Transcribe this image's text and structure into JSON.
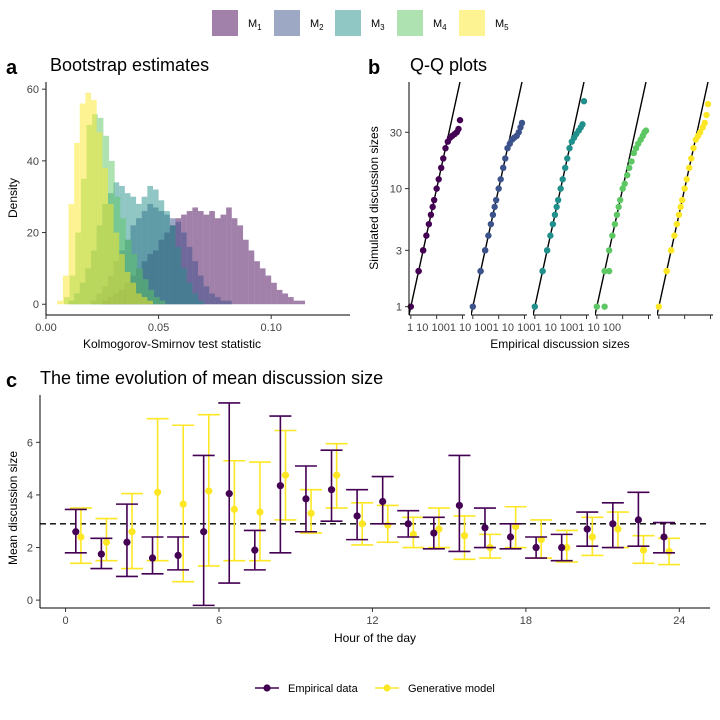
{
  "top_legend": {
    "items": [
      {
        "label": "M",
        "sub": "1",
        "color": "#440154"
      },
      {
        "label": "M",
        "sub": "2",
        "color": "#3b528b"
      },
      {
        "label": "M",
        "sub": "3",
        "color": "#21908c"
      },
      {
        "label": "M",
        "sub": "4",
        "color": "#5dc863"
      },
      {
        "label": "M",
        "sub": "5",
        "color": "#fde725"
      }
    ]
  },
  "bottom_legend": {
    "items": [
      {
        "label": "Empirical data",
        "color": "#440154"
      },
      {
        "label": "Generative model",
        "color": "#fde725"
      }
    ]
  },
  "chart_data": [
    {
      "panel": "a",
      "type": "histogram",
      "title": "Bootstrap estimates",
      "xlabel": "Kolmogorov-Smirnov test statistic",
      "ylabel": "Density",
      "xlim": [
        0.0,
        0.135
      ],
      "ylim": [
        -3,
        62
      ],
      "xticks": [
        0.0,
        0.05,
        0.1
      ],
      "xtick_labels": [
        "0.00",
        "0.05",
        "0.10"
      ],
      "yticks": [
        0,
        20,
        40,
        60
      ],
      "ytick_labels": [
        "0",
        "20",
        "40",
        "60"
      ],
      "bin_width": 0.0025,
      "series": [
        {
          "name": "M1",
          "color": "#440154",
          "bin_start": 0.025,
          "densities": [
            1,
            2,
            3,
            4,
            6,
            8,
            10,
            12,
            14,
            15,
            18,
            20,
            22,
            24,
            25,
            26,
            27,
            26,
            25,
            26,
            24,
            25,
            27,
            24,
            22,
            18,
            15,
            12,
            10,
            8,
            6,
            4,
            3,
            2,
            1,
            1
          ]
        },
        {
          "name": "M2",
          "color": "#3b528b",
          "bin_start": 0.02,
          "densities": [
            1,
            3,
            5,
            8,
            12,
            15,
            18,
            22,
            24,
            26,
            28,
            27,
            26,
            25,
            24,
            23,
            20,
            16,
            12,
            8,
            5,
            3,
            2,
            1,
            1
          ]
        },
        {
          "name": "M3",
          "color": "#21908c",
          "bin_start": 0.01,
          "densities": [
            1,
            3,
            6,
            10,
            15,
            22,
            28,
            31,
            34,
            33,
            31,
            30,
            28,
            30,
            33,
            32,
            29,
            26,
            22,
            16,
            10,
            6,
            3,
            1
          ]
        },
        {
          "name": "M4",
          "color": "#5dc863",
          "bin_start": 0.008,
          "densities": [
            2,
            8,
            20,
            35,
            50,
            53,
            52,
            47,
            40,
            30,
            24,
            18,
            14,
            10,
            7,
            4,
            2,
            1
          ]
        },
        {
          "name": "M5",
          "color": "#fde725",
          "bin_start": 0.005,
          "densities": [
            1,
            8,
            28,
            45,
            56,
            59,
            57,
            48,
            38,
            28,
            20,
            14,
            9,
            6,
            3,
            2,
            1
          ]
        }
      ]
    },
    {
      "panel": "b",
      "type": "scatter",
      "title": "Q-Q plots",
      "xlabel": "Empirical discussion sizes",
      "ylabel": "Simulated discussion sizes",
      "xscale": "log",
      "yscale": "log",
      "ylim": [
        0.85,
        80
      ],
      "xlim_each": [
        0.85,
        125
      ],
      "yticks": [
        1,
        3,
        10,
        30
      ],
      "ytick_labels": [
        "1",
        "3",
        "10",
        "30"
      ],
      "xticks": [
        1,
        10,
        100
      ],
      "xtick_labels": [
        "1",
        "10",
        "100"
      ],
      "xtick_row": "1   10 1001   10 1001   10 1001   10 1001   10 100",
      "reference_line": "y = x",
      "series": [
        {
          "name": "M1",
          "color": "#440154",
          "x": [
            1,
            2,
            2,
            3,
            3,
            4,
            5,
            6,
            7,
            8,
            10,
            12,
            15,
            18,
            22,
            27,
            33,
            40,
            50,
            60,
            70,
            80
          ],
          "y": [
            1,
            2,
            2,
            3,
            3,
            4,
            5,
            6,
            7,
            8,
            10,
            12,
            15,
            18,
            22,
            25,
            27,
            28,
            29,
            30,
            32,
            38
          ]
        },
        {
          "name": "M2",
          "color": "#3b528b",
          "x": [
            1,
            2,
            2,
            3,
            3,
            4,
            5,
            6,
            7,
            8,
            10,
            12,
            15,
            18,
            22,
            27,
            33,
            40,
            50,
            60,
            70,
            80
          ],
          "y": [
            1,
            2,
            2,
            3,
            3,
            4,
            5,
            6,
            7,
            8,
            10,
            12,
            15,
            18,
            22,
            24,
            26,
            27,
            28,
            30,
            33,
            36
          ]
        },
        {
          "name": "M3",
          "color": "#21908c",
          "x": [
            1,
            2,
            2,
            3,
            3,
            4,
            5,
            6,
            7,
            8,
            10,
            12,
            15,
            18,
            22,
            27,
            33,
            40,
            50,
            60,
            70,
            80
          ],
          "y": [
            1,
            2,
            2,
            3,
            3,
            4,
            5,
            6,
            7,
            8,
            10,
            12,
            15,
            18,
            22,
            25,
            27,
            29,
            31,
            33,
            35,
            55
          ]
        },
        {
          "name": "M4",
          "color": "#5dc863",
          "x": [
            1,
            2,
            2,
            3,
            3,
            4,
            5,
            6,
            7,
            8,
            10,
            12,
            15,
            18,
            22,
            27,
            33,
            40,
            50,
            60,
            70,
            80
          ],
          "y": [
            1,
            1,
            2,
            2,
            3,
            4,
            5,
            6,
            7,
            8,
            10,
            11,
            13,
            15,
            17,
            20,
            22,
            24,
            26,
            28,
            30,
            31
          ]
        },
        {
          "name": "M5",
          "color": "#fde725",
          "x": [
            1,
            2,
            2,
            3,
            3,
            4,
            5,
            6,
            7,
            8,
            10,
            12,
            15,
            18,
            22,
            27,
            33,
            40,
            50,
            60,
            70,
            80
          ],
          "y": [
            1,
            2,
            2,
            3,
            3,
            4,
            5,
            6,
            7,
            8,
            10,
            12,
            15,
            18,
            22,
            26,
            28,
            30,
            33,
            36,
            42,
            52
          ]
        }
      ]
    },
    {
      "panel": "c",
      "type": "errorbar",
      "title": "The time evolution of mean discussion size",
      "xlabel": "Hour of the day",
      "ylabel": "Mean discussion size",
      "xlim": [
        -1,
        25.2
      ],
      "ylim": [
        -0.3,
        7.8
      ],
      "xticks": [
        0,
        6,
        12,
        18,
        24
      ],
      "xtick_labels": [
        "0",
        "6",
        "12",
        "18",
        "24"
      ],
      "yticks": [
        0,
        2,
        4,
        6
      ],
      "ytick_labels": [
        "0",
        "2",
        "4",
        "6"
      ],
      "reference_y": 2.9,
      "series": [
        {
          "name": "Empirical data",
          "color": "#440154",
          "x": [
            0.5,
            1.5,
            2.5,
            3.5,
            4.5,
            5.5,
            6.5,
            7.5,
            8.5,
            9.5,
            10.5,
            11.5,
            12.5,
            13.5,
            14.5,
            15.5,
            16.5,
            17.5,
            18.5,
            19.5,
            20.5,
            21.5,
            22.5,
            23.5
          ],
          "mean": [
            2.6,
            1.75,
            2.2,
            1.6,
            1.7,
            2.6,
            4.05,
            1.9,
            4.35,
            3.85,
            4.2,
            3.2,
            3.75,
            2.9,
            2.55,
            3.6,
            2.75,
            2.4,
            2.0,
            2.0,
            2.7,
            2.9,
            3.05,
            2.4
          ],
          "low": [
            1.8,
            1.2,
            0.9,
            1.0,
            1.15,
            -0.2,
            0.65,
            1.15,
            1.8,
            2.6,
            3.0,
            2.3,
            2.9,
            2.4,
            1.95,
            1.85,
            2.0,
            1.95,
            1.6,
            1.5,
            2.05,
            2.0,
            2.05,
            1.8
          ],
          "high": [
            3.45,
            2.35,
            3.65,
            2.4,
            2.4,
            5.5,
            7.5,
            2.65,
            7.0,
            5.1,
            5.7,
            4.2,
            4.7,
            3.4,
            3.15,
            5.5,
            3.5,
            2.9,
            2.4,
            2.5,
            3.35,
            3.7,
            4.1,
            2.95
          ]
        },
        {
          "name": "Generative model",
          "color": "#fde725",
          "x": [
            0.5,
            1.5,
            2.5,
            3.5,
            4.5,
            5.5,
            6.5,
            7.5,
            8.5,
            9.5,
            10.5,
            11.5,
            12.5,
            13.5,
            14.5,
            15.5,
            16.5,
            17.5,
            18.5,
            19.5,
            20.5,
            21.5,
            22.5,
            23.5
          ],
          "mean": [
            2.4,
            2.2,
            2.6,
            4.1,
            3.65,
            4.15,
            3.45,
            3.35,
            4.75,
            3.3,
            4.75,
            2.9,
            2.85,
            2.5,
            2.7,
            2.45,
            2.0,
            2.8,
            2.3,
            2.0,
            2.4,
            2.7,
            1.9,
            1.85
          ],
          "low": [
            1.4,
            1.5,
            1.2,
            1.5,
            0.7,
            1.3,
            1.5,
            1.5,
            3.05,
            2.55,
            3.5,
            2.1,
            2.2,
            2.0,
            2.0,
            1.55,
            1.6,
            2.0,
            1.6,
            1.45,
            1.7,
            2.0,
            1.4,
            1.35
          ],
          "high": [
            3.5,
            3.1,
            4.05,
            6.9,
            6.65,
            7.05,
            5.3,
            5.25,
            6.45,
            4.2,
            5.95,
            3.7,
            3.6,
            3.15,
            3.5,
            3.2,
            2.5,
            3.55,
            3.05,
            2.65,
            3.15,
            3.35,
            2.45,
            2.35
          ]
        }
      ]
    }
  ]
}
